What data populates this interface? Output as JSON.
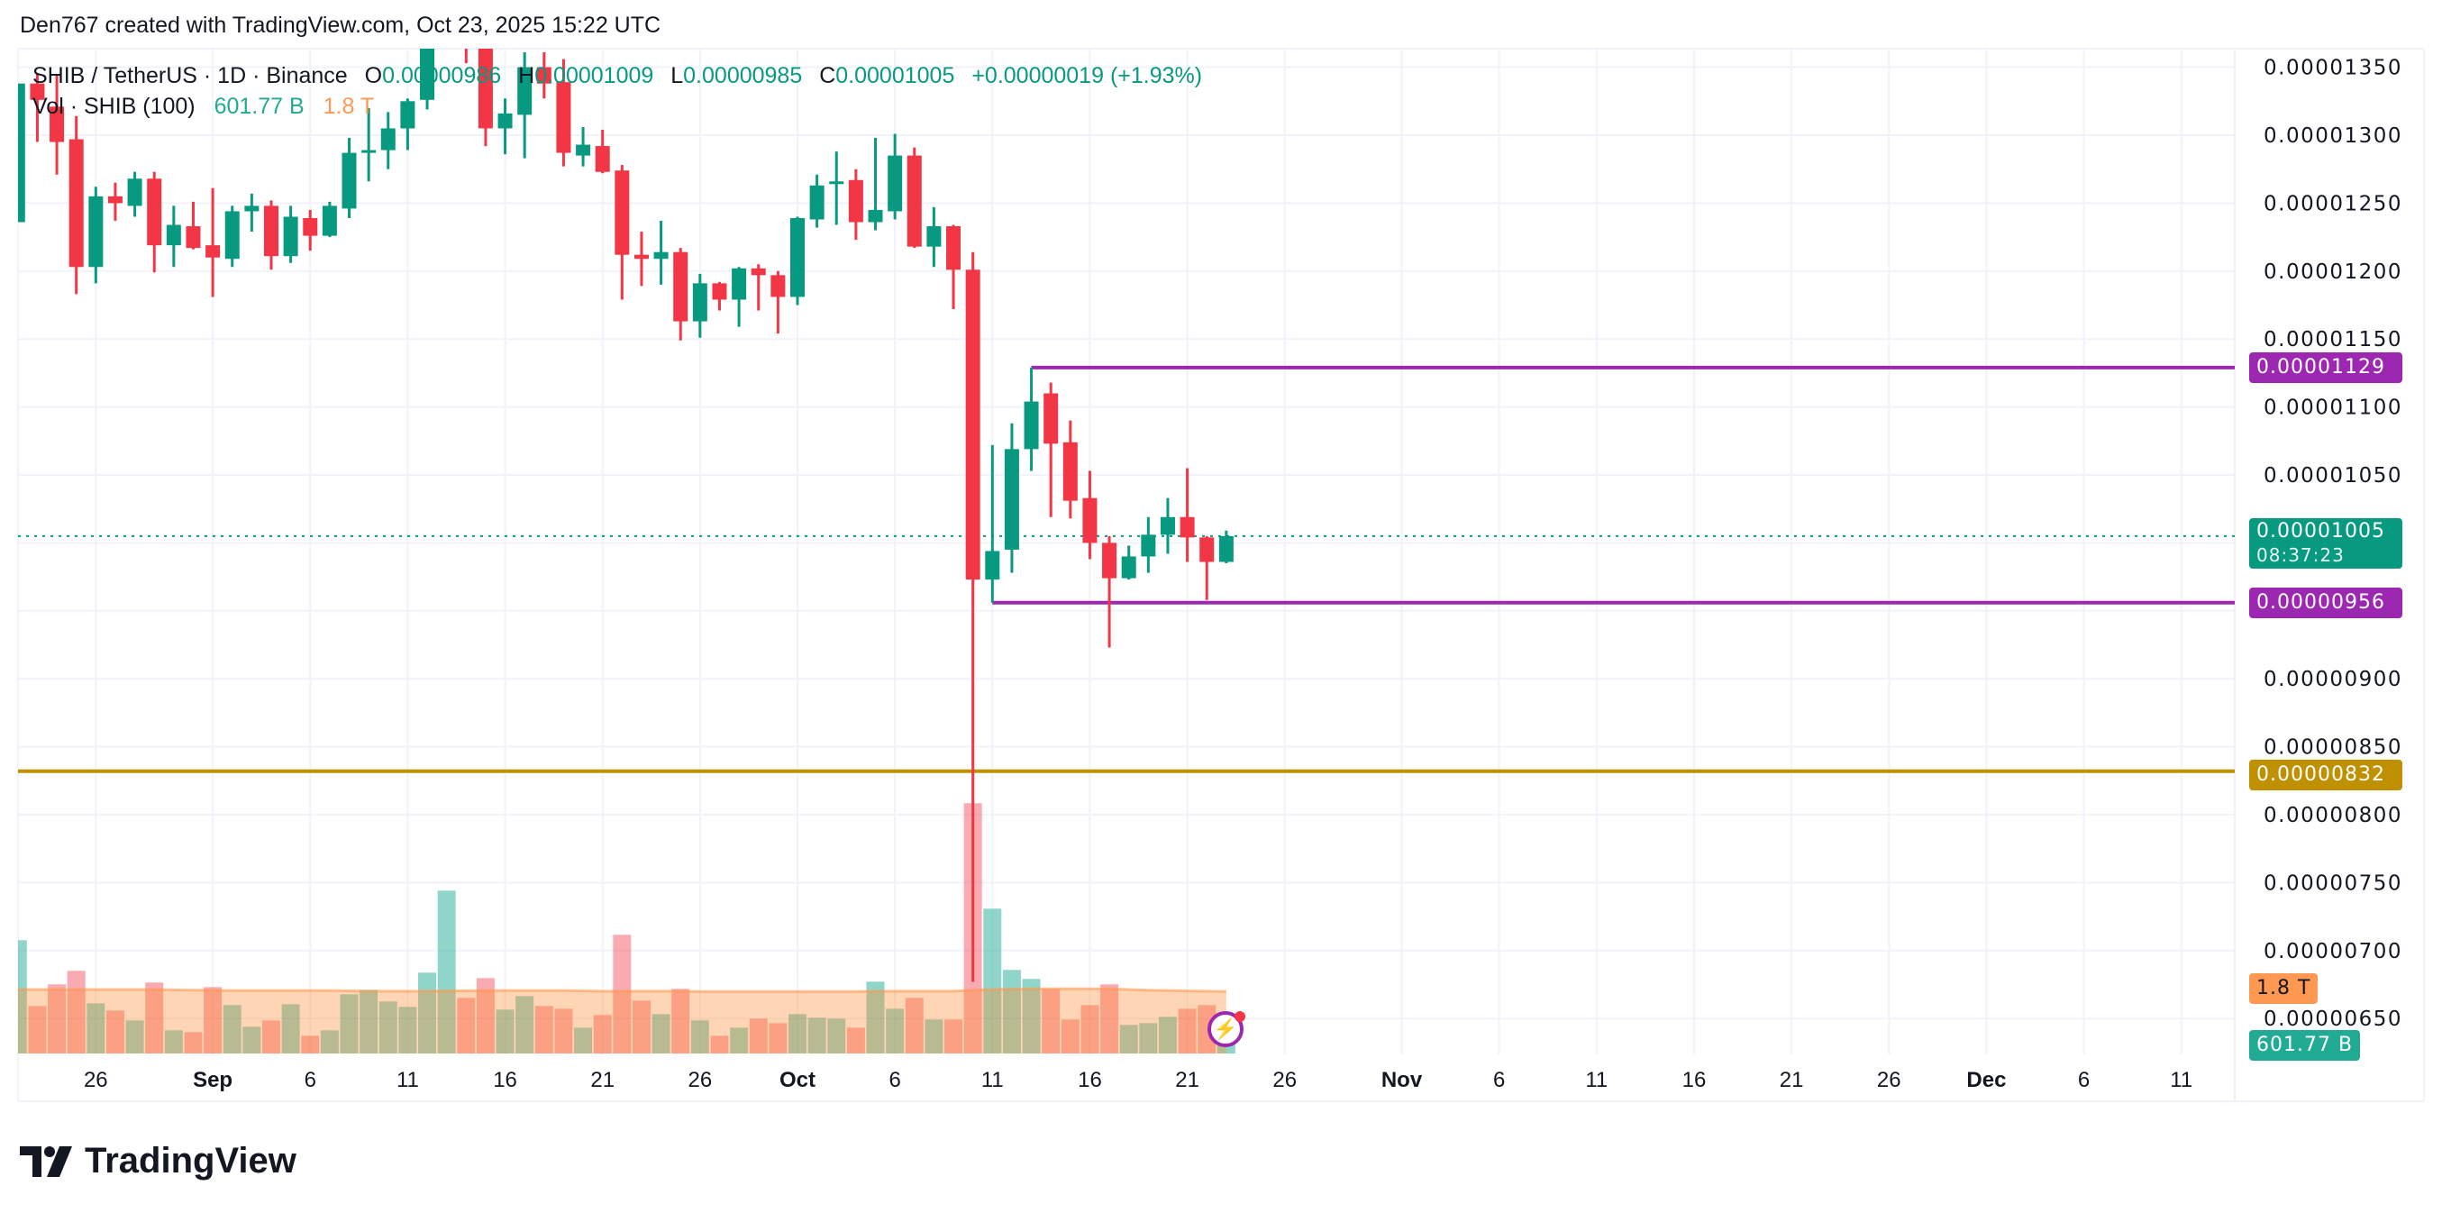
{
  "header": {
    "caption": "Den767 created with TradingView.com, Oct 23, 2025 15:22 UTC"
  },
  "legend": {
    "symbol": "SHIB / TetherUS · 1D · Binance",
    "open_label": "O",
    "open": "0.00000986",
    "high_label": "H",
    "high": "0.00001009",
    "low_label": "L",
    "low": "0.00000985",
    "close_label": "C",
    "close": "0.00001005",
    "change": "+0.00000019 (+1.93%)",
    "volume_title": "Vol · SHIB (100)",
    "volume_value": "601.77 B",
    "volume_ma": "1.8 T"
  },
  "colors": {
    "up": "#089981",
    "down": "#f23645",
    "level_purple": "#9c27b0",
    "level_gold": "#bf9000",
    "volume_ma": "#ff9850"
  },
  "price_axis": {
    "ticks": [
      "0.00001350",
      "0.00001300",
      "0.00001250",
      "0.00001200",
      "0.00001150",
      "0.00001100",
      "0.00001050",
      "0.00000900",
      "0.00000850",
      "0.00000800",
      "0.00000750",
      "0.00000700",
      "0.00000650"
    ]
  },
  "price_labels": {
    "resistance": "0.00001129",
    "current": "0.00001005",
    "countdown": "08:37:23",
    "support": "0.00000956",
    "gold_level": "0.00000832",
    "volume_ma": "1.8 T",
    "volume": "601.77 B"
  },
  "levels": [
    {
      "name": "resistance",
      "price": 1.129e-05,
      "from": "2025-10-13",
      "color": "#9c27b0"
    },
    {
      "name": "support",
      "price": 9.56e-06,
      "from": "2025-10-11",
      "color": "#9c27b0"
    },
    {
      "name": "gold",
      "price": 8.32e-06,
      "from": null,
      "color": "#bf9000"
    }
  ],
  "time_axis": [
    {
      "label": "26",
      "date": "2025-08-26",
      "month": false
    },
    {
      "label": "Sep",
      "date": "2025-09-01",
      "month": true
    },
    {
      "label": "6",
      "date": "2025-09-06",
      "month": false
    },
    {
      "label": "11",
      "date": "2025-09-11",
      "month": false
    },
    {
      "label": "16",
      "date": "2025-09-16",
      "month": false
    },
    {
      "label": "21",
      "date": "2025-09-21",
      "month": false
    },
    {
      "label": "26",
      "date": "2025-09-26",
      "month": false
    },
    {
      "label": "Oct",
      "date": "2025-10-01",
      "month": true
    },
    {
      "label": "6",
      "date": "2025-10-06",
      "month": false
    },
    {
      "label": "11",
      "date": "2025-10-11",
      "month": false
    },
    {
      "label": "16",
      "date": "2025-10-16",
      "month": false
    },
    {
      "label": "21",
      "date": "2025-10-21",
      "month": false
    },
    {
      "label": "26",
      "date": "2025-10-26",
      "month": false
    },
    {
      "label": "Nov",
      "date": "2025-11-01",
      "month": true
    },
    {
      "label": "6",
      "date": "2025-11-06",
      "month": false
    },
    {
      "label": "11",
      "date": "2025-11-11",
      "month": false
    },
    {
      "label": "16",
      "date": "2025-11-16",
      "month": false
    },
    {
      "label": "21",
      "date": "2025-11-21",
      "month": false
    },
    {
      "label": "26",
      "date": "2025-11-26",
      "month": false
    },
    {
      "label": "Dec",
      "date": "2025-12-01",
      "month": true
    },
    {
      "label": "6",
      "date": "2025-12-06",
      "month": false
    },
    {
      "label": "11",
      "date": "2025-12-11",
      "month": false
    }
  ],
  "chart_data": {
    "type": "candlestick",
    "ylim": [
      6e-06,
      1.39e-05
    ],
    "columns": [
      "date",
      "open",
      "high",
      "low",
      "close",
      "volume"
    ],
    "candles": [
      [
        "2025-08-22",
        1.236e-05,
        1.338e-05,
        1.236e-05,
        1.338e-05,
        3293000000000.0
      ],
      [
        "2025-08-23",
        1.338e-05,
        1.345e-05,
        1.295e-05,
        1.326e-05,
        1381000000000.0
      ],
      [
        "2025-08-24",
        1.321e-05,
        1.344e-05,
        1.271e-05,
        1.295e-05,
        2010000000000.0
      ],
      [
        "2025-08-25",
        1.297e-05,
        1.314e-05,
        1.183e-05,
        1.203e-05,
        2403000000000.0
      ],
      [
        "2025-08-26",
        1.203e-05,
        1.262e-05,
        1.191e-05,
        1.255e-05,
        1459000000000.0
      ],
      [
        "2025-08-27",
        1.255e-05,
        1.265e-05,
        1.237e-05,
        1.25e-05,
        1250000000000.0
      ],
      [
        "2025-08-28",
        1.248e-05,
        1.273e-05,
        1.24e-05,
        1.268e-05,
        962000000000.0
      ],
      [
        "2025-08-29",
        1.268e-05,
        1.273e-05,
        1.199e-05,
        1.219e-05,
        2062000000000.0
      ],
      [
        "2025-08-30",
        1.219e-05,
        1.248e-05,
        1.203e-05,
        1.234e-05,
        673000000000.0
      ],
      [
        "2025-08-31",
        1.233e-05,
        1.251e-05,
        1.216e-05,
        1.217e-05,
        621000000000.0
      ],
      [
        "2025-09-01",
        1.219e-05,
        1.261e-05,
        1.181e-05,
        1.21e-05,
        1931000000000.0
      ],
      [
        "2025-09-02",
        1.209e-05,
        1.248e-05,
        1.203e-05,
        1.244e-05,
        1407000000000.0
      ],
      [
        "2025-09-03",
        1.244e-05,
        1.257e-05,
        1.229e-05,
        1.248e-05,
        778000000000.0
      ],
      [
        "2025-09-04",
        1.248e-05,
        1.252e-05,
        1.201e-05,
        1.211e-05,
        962000000000.0
      ],
      [
        "2025-09-05",
        1.211e-05,
        1.248e-05,
        1.206e-05,
        1.24e-05,
        1433000000000.0
      ],
      [
        "2025-09-06",
        1.239e-05,
        1.245e-05,
        1.215e-05,
        1.226e-05,
        516000000000.0
      ],
      [
        "2025-09-07",
        1.226e-05,
        1.251e-05,
        1.225e-05,
        1.248e-05,
        673000000000.0
      ],
      [
        "2025-09-08",
        1.246e-05,
        1.298e-05,
        1.239e-05,
        1.287e-05,
        1721000000000.0
      ],
      [
        "2025-09-09",
        1.287e-05,
        1.32e-05,
        1.266e-05,
        1.289e-05,
        1852000000000.0
      ],
      [
        "2025-09-10",
        1.289e-05,
        1.317e-05,
        1.275e-05,
        1.305e-05,
        1512000000000.0
      ],
      [
        "2025-09-11",
        1.305e-05,
        1.327e-05,
        1.289e-05,
        1.325e-05,
        1355000000000.0
      ],
      [
        "2025-09-12",
        1.326e-05,
        1.39e-05,
        1.319e-05,
        1.375e-05,
        2350000000000.0
      ],
      [
        "2025-09-13",
        1.375e-05,
        1.42e-05,
        1.368e-05,
        1.4e-05,
        4734000000000.0
      ],
      [
        "2025-09-14",
        1.4e-05,
        1.41e-05,
        1.353e-05,
        1.378e-05,
        1617000000000.0
      ],
      [
        "2025-09-15",
        1.378e-05,
        1.385e-05,
        1.292e-05,
        1.305e-05,
        2193000000000.0
      ],
      [
        "2025-09-16",
        1.305e-05,
        1.327e-05,
        1.286e-05,
        1.316e-05,
        1276000000000.0
      ],
      [
        "2025-09-17",
        1.315e-05,
        1.361e-05,
        1.283e-05,
        1.35e-05,
        1669000000000.0
      ],
      [
        "2025-09-18",
        1.35e-05,
        1.361e-05,
        1.327e-05,
        1.338e-05,
        1381000000000.0
      ],
      [
        "2025-09-19",
        1.339e-05,
        1.356e-05,
        1.277e-05,
        1.287e-05,
        1302000000000.0
      ],
      [
        "2025-09-20",
        1.285e-05,
        1.306e-05,
        1.277e-05,
        1.293e-05,
        752000000000.0
      ],
      [
        "2025-09-21",
        1.292e-05,
        1.304e-05,
        1.272e-05,
        1.273e-05,
        1119000000000.0
      ],
      [
        "2025-09-22",
        1.274e-05,
        1.278e-05,
        1.179e-05,
        1.212e-05,
        3451000000000.0
      ],
      [
        "2025-09-23",
        1.212e-05,
        1.229e-05,
        1.189e-05,
        1.209e-05,
        1538000000000.0
      ],
      [
        "2025-09-24",
        1.209e-05,
        1.237e-05,
        1.19e-05,
        1.214e-05,
        1145000000000.0
      ],
      [
        "2025-09-25",
        1.214e-05,
        1.217e-05,
        1.149e-05,
        1.163e-05,
        1879000000000.0
      ],
      [
        "2025-09-26",
        1.163e-05,
        1.198e-05,
        1.151e-05,
        1.191e-05,
        962000000000.0
      ],
      [
        "2025-09-27",
        1.191e-05,
        1.192e-05,
        1.171e-05,
        1.179e-05,
        516000000000.0
      ],
      [
        "2025-09-28",
        1.179e-05,
        1.203e-05,
        1.159e-05,
        1.202e-05,
        752000000000.0
      ],
      [
        "2025-09-29",
        1.202e-05,
        1.205e-05,
        1.171e-05,
        1.197e-05,
        1014000000000.0
      ],
      [
        "2025-09-30",
        1.197e-05,
        1.2e-05,
        1.154e-05,
        1.181e-05,
        883000000000.0
      ],
      [
        "2025-10-01",
        1.181e-05,
        1.24e-05,
        1.175e-05,
        1.239e-05,
        1145000000000.0
      ],
      [
        "2025-10-02",
        1.238e-05,
        1.271e-05,
        1.232e-05,
        1.263e-05,
        1040000000000.0
      ],
      [
        "2025-10-03",
        1.264e-05,
        1.288e-05,
        1.234e-05,
        1.266e-05,
        1014000000000.0
      ],
      [
        "2025-10-04",
        1.267e-05,
        1.275e-05,
        1.223e-05,
        1.236e-05,
        752000000000.0
      ],
      [
        "2025-10-05",
        1.236e-05,
        1.298e-05,
        1.23e-05,
        1.245e-05,
        2088000000000.0
      ],
      [
        "2025-10-06",
        1.244e-05,
        1.301e-05,
        1.238e-05,
        1.285e-05,
        1302000000000.0
      ],
      [
        "2025-10-07",
        1.285e-05,
        1.291e-05,
        1.217e-05,
        1.218e-05,
        1617000000000.0
      ],
      [
        "2025-10-08",
        1.218e-05,
        1.247e-05,
        1.203e-05,
        1.233e-05,
        988000000000.0
      ],
      [
        "2025-10-09",
        1.233e-05,
        1.234e-05,
        1.172e-05,
        1.201e-05,
        988000000000.0
      ],
      [
        "2025-10-10",
        1.201e-05,
        1.214e-05,
        6.77e-06,
        9.73e-06,
        7276000000000.0
      ],
      [
        "2025-10-11",
        9.73e-06,
        1.072e-05,
        9.56e-06,
        9.94e-06,
        4210000000000.0
      ],
      [
        "2025-10-12",
        9.95e-06,
        1.088e-05,
        9.78e-06,
        1.069e-05,
        2429000000000.0
      ],
      [
        "2025-10-13",
        1.069e-05,
        1.129e-05,
        1.053e-05,
        1.104e-05,
        2167000000000.0
      ],
      [
        "2025-10-14",
        1.11e-05,
        1.118e-05,
        1.019e-05,
        1.073e-05,
        1879000000000.0
      ],
      [
        "2025-10-15",
        1.074e-05,
        1.09e-05,
        1.018e-05,
        1.031e-05,
        988000000000.0
      ],
      [
        "2025-10-16",
        1.033e-05,
        1.053e-05,
        9.88e-06,
        1e-05,
        1407000000000.0
      ],
      [
        "2025-10-17",
        1e-05,
        1.005e-05,
        9.23e-06,
        9.74e-06,
        2010000000000.0
      ],
      [
        "2025-10-18",
        9.74e-06,
        9.98e-06,
        9.73e-06,
        9.9e-06,
        831000000000.0
      ],
      [
        "2025-10-19",
        9.9e-06,
        1.019e-05,
        9.78e-06,
        1.006e-05,
        883000000000.0
      ],
      [
        "2025-10-20",
        1.006e-05,
        1.033e-05,
        9.92e-06,
        1.019e-05,
        1066000000000.0
      ],
      [
        "2025-10-21",
        1.019e-05,
        1.055e-05,
        9.86e-06,
        1.004e-05,
        1302000000000.0
      ],
      [
        "2025-10-22",
        1.004e-05,
        1.005e-05,
        9.58e-06,
        9.86e-06,
        1407000000000.0
      ],
      [
        "2025-10-23",
        9.86e-06,
        1.009e-05,
        9.85e-06,
        1.005e-05,
        601770000000.0
      ]
    ],
    "volume_ma": [
      1860000000000.0,
      1860000000000.0,
      1860000000000.0,
      1860000000000.0,
      1860000000000.0,
      1860000000000.0,
      1860000000000.0,
      1860000000000.0,
      1850000000000.0,
      1840000000000.0,
      1840000000000.0,
      1830000000000.0,
      1830000000000.0,
      1830000000000.0,
      1830000000000.0,
      1830000000000.0,
      1830000000000.0,
      1820000000000.0,
      1810000000000.0,
      1810000000000.0,
      1810000000000.0,
      1810000000000.0,
      1820000000000.0,
      1820000000000.0,
      1830000000000.0,
      1830000000000.0,
      1830000000000.0,
      1830000000000.0,
      1830000000000.0,
      1820000000000.0,
      1810000000000.0,
      1810000000000.0,
      1810000000000.0,
      1810000000000.0,
      1810000000000.0,
      1800000000000.0,
      1800000000000.0,
      1800000000000.0,
      1800000000000.0,
      1800000000000.0,
      1800000000000.0,
      1800000000000.0,
      1800000000000.0,
      1800000000000.0,
      1810000000000.0,
      1810000000000.0,
      1810000000000.0,
      1810000000000.0,
      1810000000000.0,
      1840000000000.0,
      1860000000000.0,
      1870000000000.0,
      1880000000000.0,
      1880000000000.0,
      1880000000000.0,
      1880000000000.0,
      1880000000000.0,
      1860000000000.0,
      1840000000000.0,
      1830000000000.0,
      1820000000000.0,
      1810000000000.0,
      1800000000000.0
    ]
  },
  "watermark": {
    "brand": "TradingView"
  }
}
